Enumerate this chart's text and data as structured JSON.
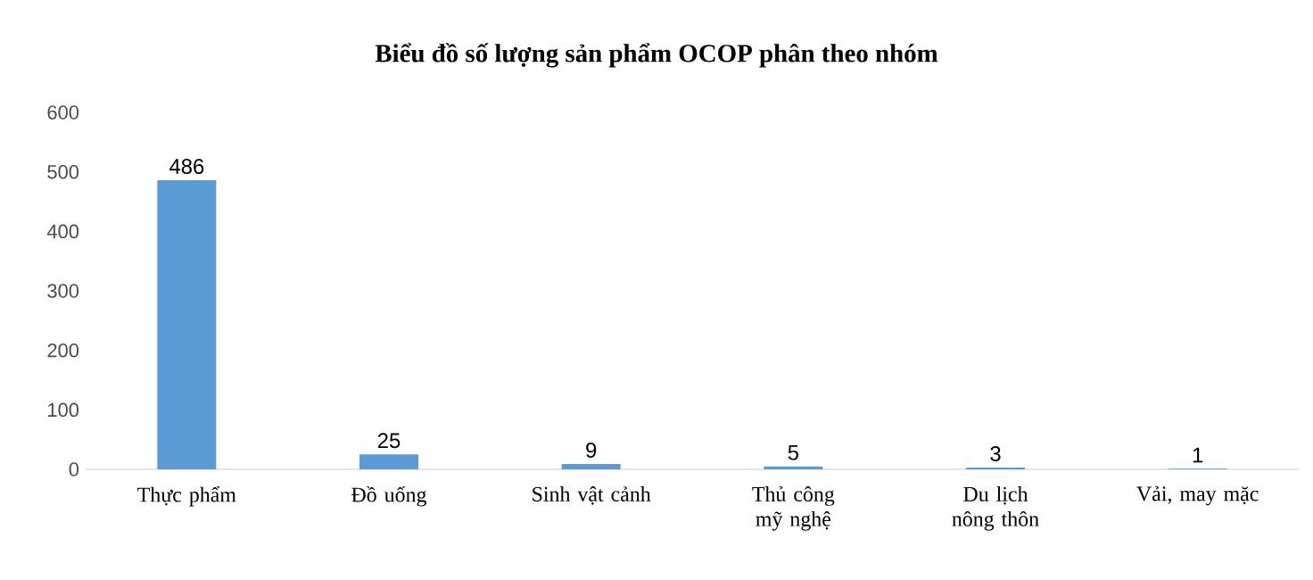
{
  "chart_data": {
    "type": "bar",
    "title": "Biểu đồ số lượng sản phẩm OCOP phân theo nhóm",
    "categories": [
      "Thực phẩm",
      "Đồ uống",
      "Sinh vật cảnh",
      "Thủ công mỹ nghệ",
      "Du lịch nông thôn",
      "Vải, may mặc"
    ],
    "values": [
      486,
      25,
      9,
      5,
      3,
      1
    ],
    "color": "#5b9bd5",
    "ylim": [
      0,
      600
    ],
    "yticks": [
      0,
      100,
      200,
      300,
      400,
      500,
      600
    ],
    "data_labels": true
  }
}
